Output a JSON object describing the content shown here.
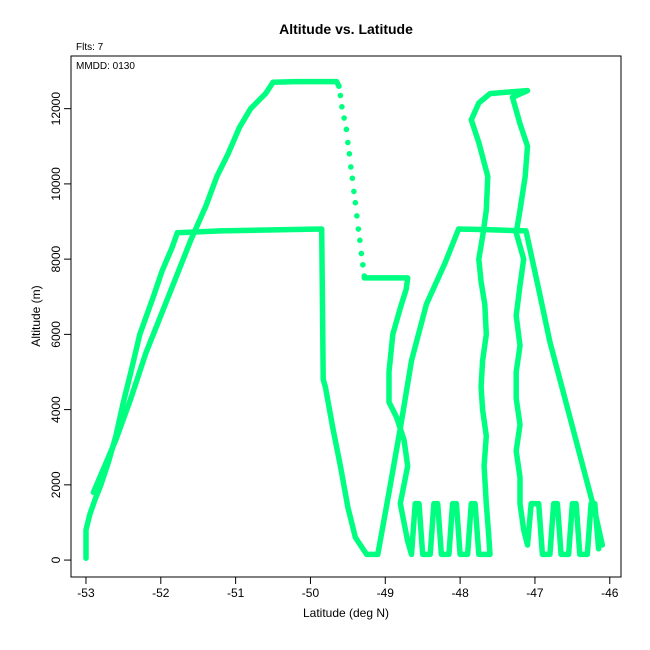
{
  "chart_data": {
    "type": "line",
    "title": "Altitude vs. Latitude",
    "xlabel": "Latitude (deg N)",
    "ylabel": "Altitude (m)",
    "xlim": [
      -53.2,
      -45.85
    ],
    "ylim": [
      -450,
      13400
    ],
    "x_ticks": [
      -53,
      -52,
      -51,
      -50,
      -49,
      -48,
      -47,
      -46
    ],
    "y_ticks": [
      0,
      2000,
      4000,
      6000,
      8000,
      10000,
      12000
    ],
    "annotations": [
      "Flts: 7",
      "MMDD: 0130"
    ],
    "grid": false,
    "series_color": "#00ff80",
    "series": [
      {
        "points": [
          [
            -53.0,
            50
          ],
          [
            -53.0,
            400
          ],
          [
            -53.0,
            800
          ],
          [
            -52.95,
            1200
          ],
          [
            -52.88,
            1600
          ],
          [
            -52.8,
            2000
          ],
          [
            -52.7,
            2600
          ],
          [
            -52.6,
            3300
          ],
          [
            -52.5,
            4200
          ],
          [
            -52.4,
            5000
          ],
          [
            -52.28,
            6000
          ],
          [
            -52.1,
            7000
          ],
          [
            -51.98,
            7700
          ],
          [
            -51.85,
            8300
          ],
          [
            -51.78,
            8700
          ],
          [
            -51.2,
            8750
          ],
          [
            -50.4,
            8780
          ],
          [
            -49.85,
            8800
          ],
          [
            -49.84,
            7000
          ],
          [
            -49.83,
            4800
          ],
          [
            -49.8,
            4600
          ],
          [
            -49.7,
            3500
          ],
          [
            -49.6,
            2500
          ],
          [
            -49.5,
            1400
          ],
          [
            -49.4,
            600
          ],
          [
            -49.25,
            150
          ],
          [
            -49.1,
            150
          ],
          [
            -48.95,
            1800
          ],
          [
            -48.8,
            3500
          ],
          [
            -48.65,
            5300
          ],
          [
            -48.45,
            6800
          ],
          [
            -48.2,
            7900
          ],
          [
            -48.02,
            8800
          ],
          [
            -47.6,
            8780
          ],
          [
            -47.12,
            8750
          ],
          [
            -46.95,
            7200
          ],
          [
            -46.8,
            5800
          ],
          [
            -46.6,
            4300
          ],
          [
            -46.4,
            2800
          ],
          [
            -46.2,
            1300
          ],
          [
            -46.1,
            400
          ]
        ]
      },
      {
        "points": [
          [
            -52.9,
            1800
          ],
          [
            -52.75,
            2500
          ],
          [
            -52.6,
            3200
          ],
          [
            -52.4,
            4300
          ],
          [
            -52.2,
            5500
          ],
          [
            -52.0,
            6500
          ],
          [
            -51.8,
            7500
          ],
          [
            -51.6,
            8500
          ],
          [
            -51.4,
            9400
          ],
          [
            -51.25,
            10200
          ],
          [
            -51.1,
            10800
          ],
          [
            -50.95,
            11500
          ],
          [
            -50.8,
            12000
          ],
          [
            -50.6,
            12400
          ],
          [
            -50.5,
            12700
          ],
          [
            -50.2,
            12720
          ],
          [
            -49.9,
            12720
          ],
          [
            -49.65,
            12720
          ],
          [
            -49.62,
            12600
          ]
        ]
      },
      {
        "style": "dots",
        "points": [
          [
            -49.62,
            12600
          ],
          [
            -49.6,
            12350
          ],
          [
            -49.58,
            12050
          ],
          [
            -49.55,
            11750
          ],
          [
            -49.52,
            11450
          ],
          [
            -49.5,
            11100
          ],
          [
            -49.48,
            10800
          ],
          [
            -49.46,
            10450
          ],
          [
            -49.44,
            10150
          ],
          [
            -49.42,
            9800
          ],
          [
            -49.4,
            9500
          ],
          [
            -49.38,
            9150
          ],
          [
            -49.36,
            8800
          ],
          [
            -49.34,
            8500
          ],
          [
            -49.32,
            8150
          ],
          [
            -49.3,
            7850
          ],
          [
            -49.28,
            7550
          ]
        ]
      },
      {
        "points": [
          [
            -49.28,
            7500
          ],
          [
            -49.0,
            7500
          ],
          [
            -48.7,
            7500
          ],
          [
            -48.72,
            7200
          ],
          [
            -48.8,
            6700
          ],
          [
            -48.9,
            6000
          ],
          [
            -48.95,
            5000
          ],
          [
            -48.95,
            4200
          ],
          [
            -48.85,
            3800
          ],
          [
            -48.75,
            3200
          ],
          [
            -48.7,
            2500
          ],
          [
            -48.75,
            2000
          ],
          [
            -48.8,
            1500
          ],
          [
            -48.75,
            1000
          ],
          [
            -48.7,
            500
          ],
          [
            -48.65,
            150
          ],
          [
            -48.6,
            1500
          ],
          [
            -48.55,
            1500
          ],
          [
            -48.5,
            150
          ],
          [
            -48.4,
            150
          ],
          [
            -48.35,
            1500
          ],
          [
            -48.3,
            1500
          ],
          [
            -48.25,
            150
          ],
          [
            -48.15,
            150
          ],
          [
            -48.1,
            1500
          ],
          [
            -48.05,
            1500
          ],
          [
            -48.0,
            150
          ],
          [
            -47.9,
            150
          ],
          [
            -47.85,
            1500
          ],
          [
            -47.8,
            1500
          ],
          [
            -47.75,
            150
          ],
          [
            -47.6,
            150
          ],
          [
            -47.62,
            700
          ],
          [
            -47.65,
            1500
          ],
          [
            -47.68,
            2500
          ],
          [
            -47.65,
            3300
          ],
          [
            -47.7,
            4000
          ],
          [
            -47.72,
            4600
          ],
          [
            -47.7,
            5300
          ],
          [
            -47.65,
            6000
          ],
          [
            -47.67,
            6800
          ],
          [
            -47.72,
            7400
          ],
          [
            -47.75,
            8000
          ],
          [
            -47.7,
            8600
          ],
          [
            -47.65,
            9300
          ],
          [
            -47.63,
            10200
          ],
          [
            -47.75,
            11100
          ],
          [
            -47.85,
            11700
          ],
          [
            -47.75,
            12150
          ],
          [
            -47.6,
            12400
          ],
          [
            -47.3,
            12450
          ],
          [
            -47.1,
            12480
          ],
          [
            -47.3,
            12300
          ],
          [
            -47.2,
            11600
          ],
          [
            -47.1,
            11000
          ],
          [
            -47.13,
            10200
          ],
          [
            -47.2,
            9300
          ],
          [
            -47.25,
            8700
          ],
          [
            -47.15,
            8000
          ],
          [
            -47.2,
            7300
          ],
          [
            -47.25,
            6500
          ],
          [
            -47.2,
            5700
          ],
          [
            -47.25,
            5000
          ],
          [
            -47.25,
            4300
          ],
          [
            -47.2,
            3600
          ],
          [
            -47.25,
            2900
          ],
          [
            -47.2,
            2200
          ],
          [
            -47.2,
            1500
          ],
          [
            -47.15,
            800
          ],
          [
            -47.1,
            400
          ],
          [
            -47.05,
            1500
          ],
          [
            -46.95,
            1500
          ],
          [
            -46.9,
            150
          ],
          [
            -46.8,
            150
          ],
          [
            -46.75,
            1500
          ],
          [
            -46.7,
            1500
          ],
          [
            -46.65,
            150
          ],
          [
            -46.55,
            150
          ],
          [
            -46.5,
            1500
          ],
          [
            -46.45,
            1500
          ],
          [
            -46.4,
            150
          ],
          [
            -46.3,
            150
          ],
          [
            -46.25,
            1500
          ],
          [
            -46.2,
            1500
          ],
          [
            -46.15,
            300
          ]
        ]
      }
    ]
  }
}
